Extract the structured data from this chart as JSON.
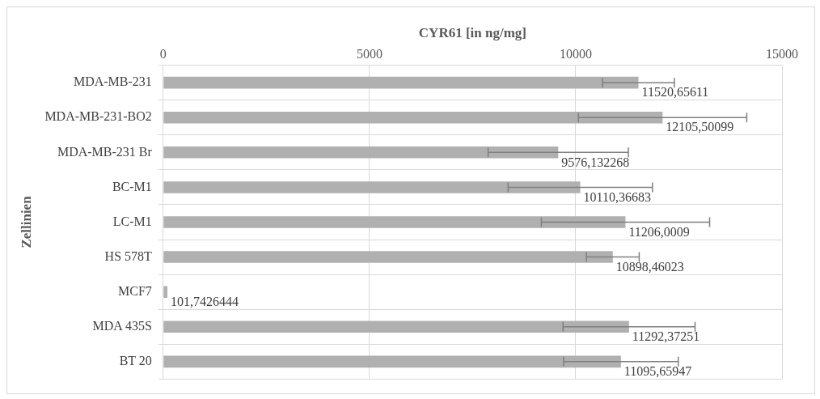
{
  "chart_data": {
    "type": "bar",
    "orientation": "horizontal",
    "xlabel": "CYR61 [in ng/mg]",
    "ylabel": "Zellinien",
    "categories": [
      "MDA-MB-231",
      "MDA-MB-231-BO2",
      "MDA-MB-231 Br",
      "BC-M1",
      "LC-M1",
      "HS 578T",
      "MCF7",
      "MDA 435S",
      "BT 20"
    ],
    "values": [
      11520.65611,
      12105.50099,
      9576.132268,
      10110.36683,
      11206.0009,
      10898.46023,
      101.7426444,
      11292.37251,
      11095.65947
    ],
    "value_labels": [
      "11520,65611",
      "12105,50099",
      "9576,132268",
      "10110,36683",
      "11206,0009",
      "10898,46023",
      "101,7426444",
      "11292,37251",
      "11095,65947"
    ],
    "errors": [
      870,
      2040,
      1700,
      1750,
      2040,
      640,
      null,
      1600,
      1390
    ],
    "color": "#b0b0b0",
    "xlim": [
      0,
      15000
    ],
    "xticks": [
      0,
      5000,
      10000,
      15000
    ],
    "grid": true,
    "legend": false
  }
}
